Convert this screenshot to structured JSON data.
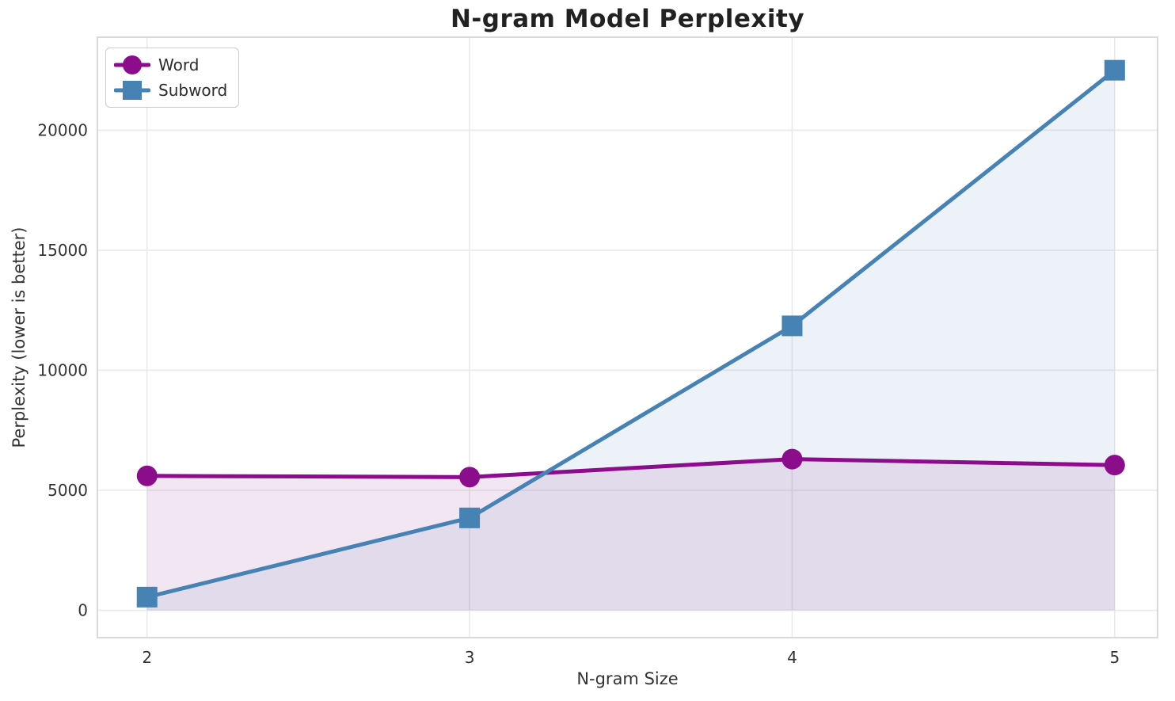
{
  "chart_data": {
    "type": "line",
    "title": "N-gram Model Perplexity",
    "xlabel": "N-gram Size",
    "ylabel": "Perplexity (lower is better)",
    "x": [
      2,
      3,
      4,
      5
    ],
    "series": [
      {
        "name": "Word",
        "values": [
          5600,
          5550,
          6300,
          6050
        ],
        "color": "#8C0D8C",
        "marker": "circle"
      },
      {
        "name": "Subword",
        "values": [
          550,
          3850,
          11850,
          22500
        ],
        "color": "#4682B4",
        "marker": "square"
      }
    ],
    "fill_alpha": 0.1,
    "fill_baseline": 0,
    "xlim": [
      1.846,
      5.133
    ],
    "ylim": [
      -1138,
      23875
    ],
    "xticks": [
      2,
      3,
      4,
      5
    ],
    "yticks": [
      0,
      5000,
      10000,
      15000,
      20000
    ],
    "grid": true,
    "legend_position": "upper-left",
    "line_width": 5,
    "marker_size": 13,
    "colors": {
      "grid": "#e9e9e9",
      "spine": "#d9d9d9",
      "tick_text": "#333333",
      "title_text": "#212121",
      "background": "#ffffff"
    }
  }
}
